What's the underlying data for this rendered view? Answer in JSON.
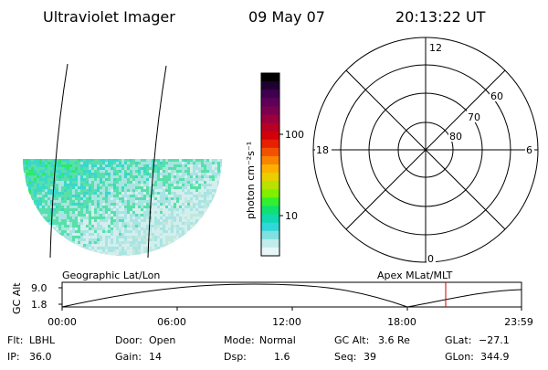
{
  "header": {
    "instrument": "Ultraviolet Imager",
    "date": "09 May 07",
    "time": "20:13:22 UT"
  },
  "image_panel": {
    "caption": "Geographic Lat/Lon",
    "dot_colors": [
      "#2ee86a",
      "#3ad8c8",
      "#58e0a8",
      "#a8e4e4",
      "#d4eeee",
      "#c0e8dc",
      "#e6f2f0"
    ]
  },
  "colorbar": {
    "unit_label": "photon cm⁻²s⁻¹",
    "tick_labels": [
      "100",
      "10"
    ],
    "colors": [
      "#000000",
      "#200030",
      "#400050",
      "#5e0058",
      "#7c0050",
      "#9a003e",
      "#b80024",
      "#d2000a",
      "#e62000",
      "#f25200",
      "#fa8400",
      "#ffb000",
      "#e8d000",
      "#b8e200",
      "#7ef000",
      "#30f030",
      "#10e070",
      "#10d8b0",
      "#30d8d8",
      "#80e0e0",
      "#c0ecec",
      "#e8f6f6"
    ]
  },
  "polar_plot": {
    "caption": "Apex MLat/MLT",
    "mlt_labels": {
      "top": "12",
      "bottom": "0",
      "left": "18",
      "right": "6"
    },
    "lat_labels": [
      "60",
      "70",
      "80"
    ]
  },
  "altitude_plot": {
    "ylabel": "GC Alt",
    "ytick_labels": [
      "9.0",
      "1.8"
    ],
    "xtick_labels": [
      "00:00",
      "06:00",
      "12:00",
      "18:00",
      "23:59"
    ],
    "current_time_marker_color": "#cc0000"
  },
  "status": [
    {
      "label": "Flt:",
      "value": "LBHL"
    },
    {
      "label": "Door:",
      "value": "Open"
    },
    {
      "label": "Mode:",
      "value": "Normal"
    },
    {
      "label": "GC Alt:",
      "value": "3.6 Re"
    },
    {
      "label": "GLat:",
      "value": "−27.1"
    },
    {
      "label": "IP:",
      "value": "36.0"
    },
    {
      "label": "Gain:",
      "value": "14"
    },
    {
      "label": "Dsp:",
      "value": "1.6"
    },
    {
      "label": "Seq:",
      "value": "39"
    },
    {
      "label": "GLon:",
      "value": "344.9"
    }
  ]
}
